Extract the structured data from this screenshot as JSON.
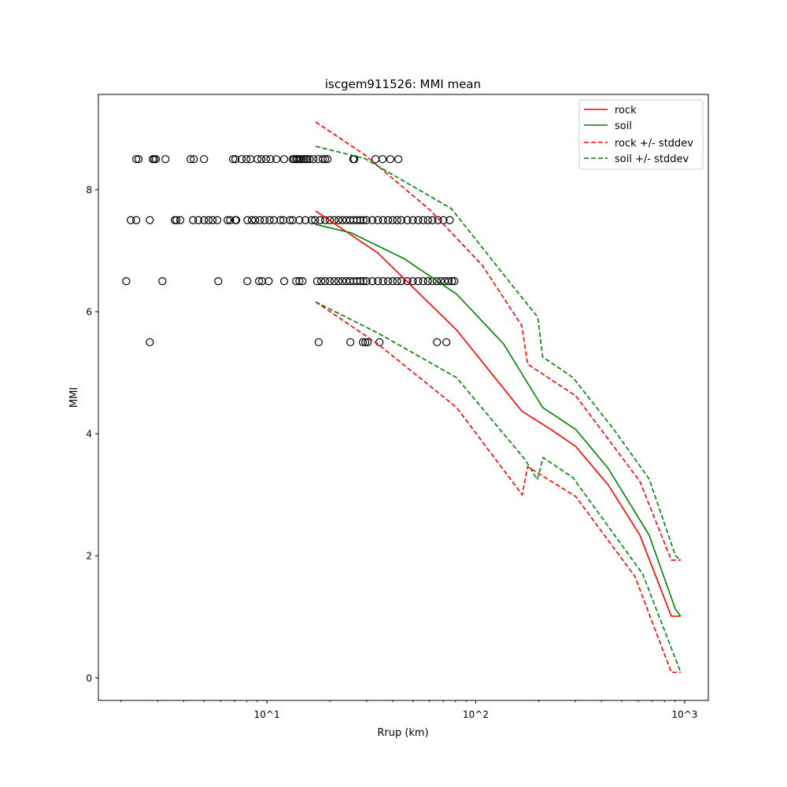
{
  "chart_data": {
    "type": "line",
    "title": "iscgem911526: MMI mean",
    "xlabel": "Rrup (km)",
    "ylabel": "MMI",
    "xscale": "log",
    "xlim": [
      1.56,
      1298
    ],
    "ylim": [
      -0.37,
      9.56
    ],
    "x_ticks": [
      10,
      100,
      1000
    ],
    "x_tick_labels": [
      "10^1",
      "10^2",
      "10^3"
    ],
    "y_ticks": [
      0,
      2,
      4,
      6,
      8
    ],
    "y_tick_labels": [
      "0",
      "2",
      "4",
      "6",
      "8"
    ],
    "grid": false,
    "legend_placement": "top-right",
    "series": [
      {
        "name": "rock",
        "color": "#ff0000",
        "style": "solid",
        "x": [
          17.1,
          34.0,
          80.9,
          166,
          229,
          301,
          431,
          610,
          863,
          957
        ],
        "y": [
          7.65,
          6.96,
          5.7,
          4.37,
          4.07,
          3.79,
          3.16,
          2.34,
          1.01,
          1.01
        ]
      },
      {
        "name": "soil",
        "color": "#008000",
        "style": "solid",
        "x": [
          17.1,
          25.4,
          45.3,
          80.9,
          136,
          209,
          301,
          431,
          676,
          904,
          957
        ],
        "y": [
          7.43,
          7.29,
          6.87,
          6.29,
          5.47,
          4.43,
          4.07,
          3.43,
          2.34,
          1.12,
          1.01
        ]
      },
      {
        "name": "rock +/- stddev",
        "color": "#ff0000",
        "style": "dashed",
        "upper": {
          "x": [
            17.1,
            29.4,
            60.6,
            108,
            166,
            177,
            301,
            610,
            863,
            957
          ],
          "y": [
            9.11,
            8.57,
            7.66,
            6.75,
            5.77,
            5.14,
            4.62,
            3.22,
            1.93,
            1.93
          ]
        },
        "lower": {
          "x": [
            17.1,
            34.0,
            80.9,
            167,
            177,
            301,
            578,
            863,
            957
          ],
          "y": [
            6.16,
            5.47,
            4.43,
            3.0,
            3.46,
            2.97,
            1.66,
            0.09,
            0.09
          ]
        }
      },
      {
        "name": "soil +/- stddev",
        "color": "#008000",
        "style": "dashed",
        "upper": {
          "x": [
            17.1,
            29.4,
            76.3,
            144,
            198,
            209,
            292,
            458,
            676,
            904,
            957
          ],
          "y": [
            8.71,
            8.51,
            7.69,
            6.5,
            5.91,
            5.26,
            4.92,
            4.07,
            3.26,
            2.0,
            1.93
          ]
        },
        "lower": {
          "x": [
            17.1,
            34.0,
            80.9,
            172,
            197,
            210,
            292,
            630,
            957
          ],
          "y": [
            6.16,
            5.65,
            4.92,
            3.58,
            3.25,
            3.61,
            3.28,
            1.7,
            0.09
          ]
        }
      }
    ],
    "observations": {
      "marker": "open-circle",
      "rows": [
        {
          "mmi": 8.5,
          "rrup": [
            2.37,
            2.43,
            2.84,
            2.89,
            2.94,
            3.27,
            4.31,
            4.47,
            5.0,
            6.89,
            7.07,
            7.57,
            7.98,
            8.34,
            9.02,
            9.41,
            9.91,
            10.4,
            11.1,
            12.1,
            13.3,
            13.5,
            13.8,
            14.0,
            14.3,
            14.6,
            15.0,
            15.3,
            15.6,
            16.0,
            16.7,
            17.6,
            18.5,
            19.0,
            19.5,
            25.9,
            26.2,
            33.1,
            35.8,
            39.0,
            42.6
          ]
        },
        {
          "mmi": 7.5,
          "rrup": [
            2.23,
            2.37,
            2.75,
            3.62,
            3.69,
            3.85,
            4.43,
            4.7,
            5.0,
            5.26,
            5.5,
            5.79,
            6.48,
            6.67,
            7.07,
            7.13,
            8.06,
            8.48,
            8.79,
            9.25,
            9.74,
            10.3,
            10.8,
            11.6,
            12.0,
            12.9,
            13.3,
            14.3,
            15.3,
            16.4,
            17,
            18,
            19,
            20,
            21,
            22,
            23,
            24,
            25,
            26,
            27,
            28,
            29,
            30,
            32,
            34,
            36,
            38,
            40,
            42,
            44,
            47,
            50,
            53,
            56,
            59,
            62,
            66,
            70,
            75
          ]
        },
        {
          "mmi": 6.5,
          "rrup": [
            2.12,
            3.16,
            5.85,
            8.06,
            9.17,
            9.49,
            10.2,
            12.1,
            13.8,
            14.3,
            14.8,
            17.4,
            18.2,
            19,
            20,
            21,
            22,
            23,
            24,
            25,
            26,
            27,
            28,
            29,
            30,
            32,
            34,
            36,
            38,
            40,
            42,
            44,
            47,
            50,
            53,
            56,
            59,
            62,
            65,
            68,
            71,
            74,
            77,
            79
          ]
        },
        {
          "mmi": 5.5,
          "rrup": [
            2.75,
            17.7,
            25.1,
            28.8,
            29.6,
            30.4,
            34.6,
            65.2,
            72.3
          ]
        }
      ]
    }
  }
}
